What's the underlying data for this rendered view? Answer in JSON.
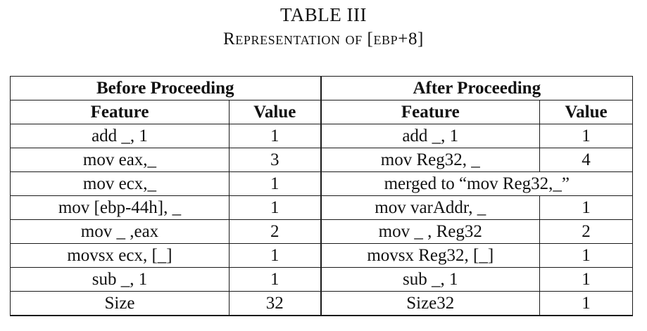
{
  "caption": {
    "title": "TABLE III",
    "subtitle": "Representation of [ebp+8]"
  },
  "table": {
    "group_headers": {
      "before": "Before Proceeding",
      "after": "After Proceeding"
    },
    "column_headers": {
      "before_feature": "Feature",
      "before_value": "Value",
      "after_feature": "Feature",
      "after_value": "Value"
    },
    "rows": [
      {
        "before_feature": "add _, 1",
        "before_value": "1",
        "after_feature": "add _, 1",
        "after_value": "1"
      },
      {
        "before_feature": "mov eax,_",
        "before_value": "3",
        "after_feature": "mov Reg32, _",
        "after_value": "4"
      },
      {
        "before_feature": "mov ecx,_",
        "before_value": "1",
        "after_merged": "merged to “mov Reg32,_”"
      },
      {
        "before_feature": "mov [ebp-44h], _",
        "before_value": "1",
        "after_feature": "mov varAddr, _",
        "after_value": "1"
      },
      {
        "before_feature": "mov _ ,eax",
        "before_value": "2",
        "after_feature": "mov _ , Reg32",
        "after_value": "2"
      },
      {
        "before_feature": "movsx ecx, [_]",
        "before_value": "1",
        "after_feature": "movsx Reg32, [_]",
        "after_value": "1"
      },
      {
        "before_feature": "sub _, 1",
        "before_value": "1",
        "after_feature": "sub _, 1",
        "after_value": "1"
      },
      {
        "before_feature": "Size",
        "before_value": "32",
        "after_feature": "Size32",
        "after_value": "1"
      }
    ]
  }
}
